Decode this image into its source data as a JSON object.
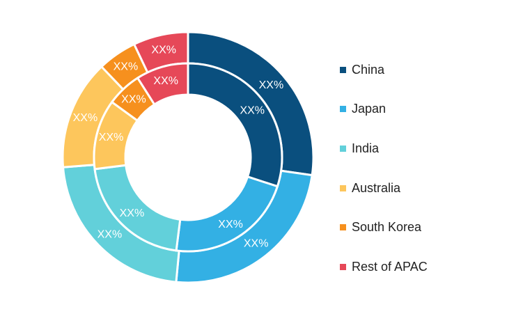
{
  "chart_data": {
    "type": "donut",
    "categories": [
      "China",
      "Japan",
      "India",
      "Australia",
      "South Korea",
      "Rest of APAC"
    ],
    "colors": [
      "#0a4f7e",
      "#33b0e4",
      "#62d0da",
      "#fdc65c",
      "#f6901e",
      "#e64858"
    ],
    "series": [
      {
        "ring": "outer",
        "values": [
          27,
          24,
          22,
          14,
          5,
          7
        ],
        "labels": [
          "XX%",
          "XX%",
          "XX%",
          "XX%",
          "XX%",
          "XX%"
        ]
      },
      {
        "ring": "inner",
        "values": [
          30,
          22,
          21,
          12,
          6,
          9
        ],
        "labels": [
          "XX%",
          "XX%",
          "XX%",
          "XX%",
          "XX%",
          "XX%"
        ]
      }
    ],
    "legend_position": "right"
  }
}
